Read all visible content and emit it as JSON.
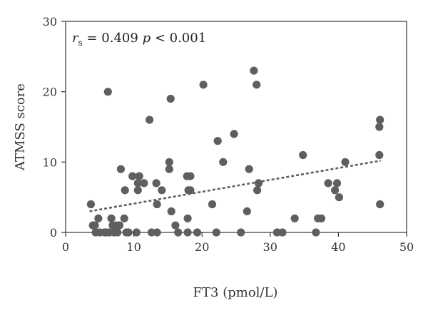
{
  "chart_data": {
    "type": "scatter",
    "xlabel": "FT3 (pmol/L)",
    "ylabel": "ATMSS score",
    "xlim": [
      0,
      50
    ],
    "ylim": [
      0,
      30
    ],
    "x_ticks": [
      0,
      10,
      20,
      30,
      40,
      50
    ],
    "y_ticks": [
      0,
      10,
      20,
      30
    ],
    "x_tick_labels": [
      "0",
      "10",
      "20",
      "30",
      "40",
      "50"
    ],
    "y_tick_labels": [
      "0",
      "10",
      "20",
      "30"
    ],
    "grid": false,
    "colors": {
      "points": "#5f5f5f",
      "trendline": "#5f5f5f",
      "axis": "#333333"
    },
    "annotation": {
      "r_symbol": "r",
      "r_subscript": "s",
      "r_equals": " = 0.409 ",
      "p_symbol": "p",
      "p_rest": " < 0.001"
    },
    "trendline": {
      "style": "dashed",
      "x": [
        3.5,
        46.2
      ],
      "y": [
        3.0,
        10.2
      ]
    },
    "points": [
      {
        "x": 3.7,
        "y": 4
      },
      {
        "x": 4.0,
        "y": 1
      },
      {
        "x": 4.3,
        "y": 1
      },
      {
        "x": 4.4,
        "y": 0
      },
      {
        "x": 4.8,
        "y": 2
      },
      {
        "x": 5.0,
        "y": 0
      },
      {
        "x": 5.7,
        "y": 0
      },
      {
        "x": 5.9,
        "y": 0
      },
      {
        "x": 6.2,
        "y": 20
      },
      {
        "x": 6.4,
        "y": 0
      },
      {
        "x": 6.7,
        "y": 2
      },
      {
        "x": 6.9,
        "y": 1
      },
      {
        "x": 7.1,
        "y": 0
      },
      {
        "x": 7.4,
        "y": 1
      },
      {
        "x": 7.6,
        "y": 0
      },
      {
        "x": 7.9,
        "y": 1
      },
      {
        "x": 8.1,
        "y": 9
      },
      {
        "x": 8.6,
        "y": 2
      },
      {
        "x": 8.7,
        "y": 6
      },
      {
        "x": 8.9,
        "y": 0
      },
      {
        "x": 9.2,
        "y": 0
      },
      {
        "x": 9.8,
        "y": 8
      },
      {
        "x": 10.4,
        "y": 0
      },
      {
        "x": 10.6,
        "y": 6
      },
      {
        "x": 10.6,
        "y": 7
      },
      {
        "x": 10.8,
        "y": 8
      },
      {
        "x": 11.5,
        "y": 7
      },
      {
        "x": 12.3,
        "y": 16
      },
      {
        "x": 12.6,
        "y": 0
      },
      {
        "x": 13.3,
        "y": 7
      },
      {
        "x": 13.4,
        "y": 4
      },
      {
        "x": 13.4,
        "y": 0
      },
      {
        "x": 14.1,
        "y": 6
      },
      {
        "x": 15.2,
        "y": 9
      },
      {
        "x": 15.2,
        "y": 10
      },
      {
        "x": 15.4,
        "y": 19
      },
      {
        "x": 15.5,
        "y": 3
      },
      {
        "x": 16.1,
        "y": 1
      },
      {
        "x": 16.5,
        "y": 0
      },
      {
        "x": 17.8,
        "y": 8
      },
      {
        "x": 17.9,
        "y": 2
      },
      {
        "x": 17.9,
        "y": 0
      },
      {
        "x": 18.0,
        "y": 6
      },
      {
        "x": 18.3,
        "y": 6
      },
      {
        "x": 18.3,
        "y": 8
      },
      {
        "x": 19.3,
        "y": 0
      },
      {
        "x": 20.2,
        "y": 21
      },
      {
        "x": 21.5,
        "y": 4
      },
      {
        "x": 22.1,
        "y": 0
      },
      {
        "x": 22.3,
        "y": 13
      },
      {
        "x": 23.1,
        "y": 10
      },
      {
        "x": 24.7,
        "y": 14
      },
      {
        "x": 25.7,
        "y": 0
      },
      {
        "x": 26.6,
        "y": 3
      },
      {
        "x": 26.9,
        "y": 9
      },
      {
        "x": 27.6,
        "y": 23
      },
      {
        "x": 28.0,
        "y": 21
      },
      {
        "x": 28.1,
        "y": 6
      },
      {
        "x": 28.3,
        "y": 7
      },
      {
        "x": 31.0,
        "y": 0
      },
      {
        "x": 31.8,
        "y": 0
      },
      {
        "x": 33.6,
        "y": 2
      },
      {
        "x": 34.8,
        "y": 11
      },
      {
        "x": 36.7,
        "y": 0
      },
      {
        "x": 37.0,
        "y": 2
      },
      {
        "x": 37.5,
        "y": 2
      },
      {
        "x": 38.5,
        "y": 7
      },
      {
        "x": 39.5,
        "y": 6
      },
      {
        "x": 39.8,
        "y": 7
      },
      {
        "x": 40.1,
        "y": 5
      },
      {
        "x": 41.0,
        "y": 10
      },
      {
        "x": 46.0,
        "y": 11
      },
      {
        "x": 46.0,
        "y": 15
      },
      {
        "x": 46.1,
        "y": 16
      },
      {
        "x": 46.1,
        "y": 4
      }
    ]
  }
}
